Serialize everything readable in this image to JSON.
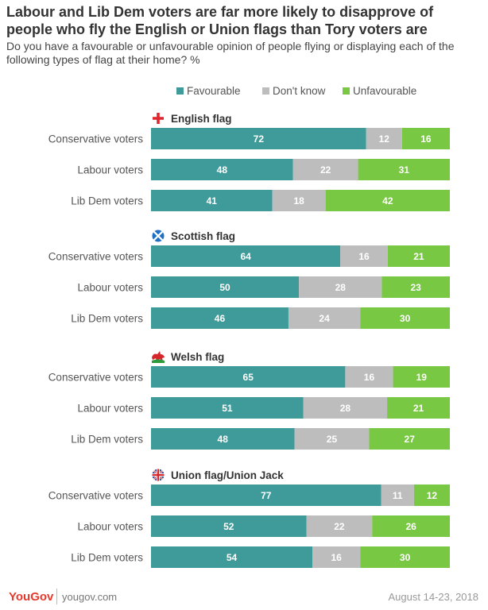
{
  "title": "Labour and Lib Dem voters are far more likely to disapprove of people who fly the English or Union flags than Tory voters are",
  "subtitle": "Do you have a favourable or unfavourable opinion of people flying or displaying each of the following types of flag at their home? %",
  "footer": {
    "brand": "YouGov",
    "site": "yougov.com",
    "date": "August 14-23, 2018"
  },
  "chart_data": {
    "type": "bar",
    "orientation": "horizontal",
    "stacked": true,
    "legend": [
      {
        "name": "Favourable",
        "color": "#3f9b9a"
      },
      {
        "name": "Don't know",
        "color": "#bdbdbd"
      },
      {
        "name": "Unfavourable",
        "color": "#79c843"
      }
    ],
    "groups": [
      {
        "name": "English flag",
        "icon": "english-flag-icon",
        "rows": [
          {
            "label": "Conservative voters",
            "values": [
              72,
              12,
              16
            ]
          },
          {
            "label": "Labour voters",
            "values": [
              48,
              22,
              31
            ]
          },
          {
            "label": "Lib Dem voters",
            "values": [
              41,
              18,
              42
            ]
          }
        ]
      },
      {
        "name": "Scottish flag",
        "icon": "scottish-flag-icon",
        "rows": [
          {
            "label": "Conservative voters",
            "values": [
              64,
              16,
              21
            ]
          },
          {
            "label": "Labour voters",
            "values": [
              50,
              28,
              23
            ]
          },
          {
            "label": "Lib Dem voters",
            "values": [
              46,
              24,
              30
            ]
          }
        ]
      },
      {
        "name": "Welsh flag",
        "icon": "welsh-flag-icon",
        "rows": [
          {
            "label": "Conservative voters",
            "values": [
              65,
              16,
              19
            ]
          },
          {
            "label": "Labour voters",
            "values": [
              51,
              28,
              21
            ]
          },
          {
            "label": "Lib Dem voters",
            "values": [
              48,
              25,
              27
            ]
          }
        ]
      },
      {
        "name": "Union flag/Union Jack",
        "icon": "union-jack-icon",
        "rows": [
          {
            "label": "Conservative voters",
            "values": [
              77,
              11,
              12
            ]
          },
          {
            "label": "Labour voters",
            "values": [
              52,
              22,
              26
            ]
          },
          {
            "label": "Lib Dem voters",
            "values": [
              54,
              16,
              30
            ]
          }
        ]
      }
    ]
  }
}
